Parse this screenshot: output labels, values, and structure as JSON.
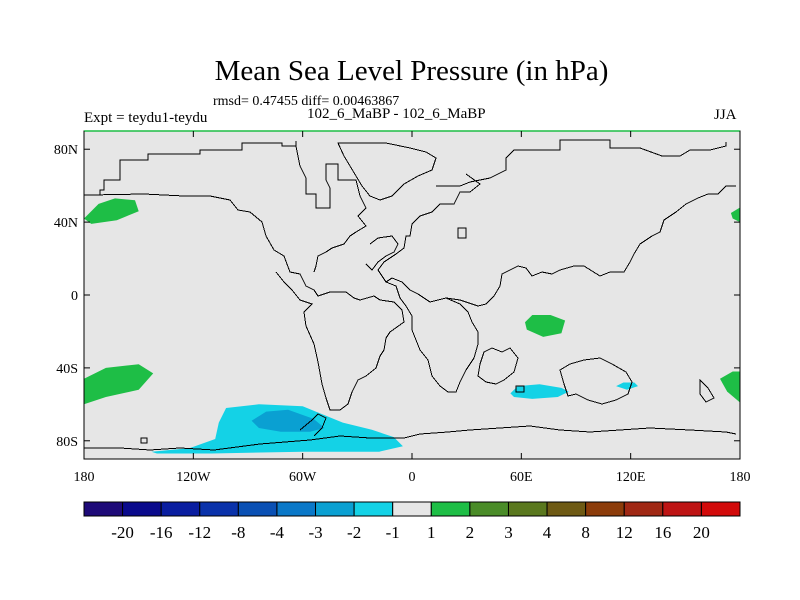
{
  "title": "Mean Sea Level Pressure (in hPa)",
  "stats": "rmsd= 0.47455 diff= 0.00463867",
  "left_label": "Expt = teydu1-teydu",
  "center_label": "102_6_MaBP - 102_6_MaBP",
  "right_label": "JJA",
  "chart_data": {
    "type": "heatmap",
    "title": "Mean Sea Level Pressure (in hPa)",
    "subtitle": "102_6_MaBP - 102_6_MaBP",
    "variable": "Mean sea level pressure difference (hPa)",
    "season": "JJA",
    "xlabel": "",
    "ylabel": "",
    "xlim": [
      -180,
      180
    ],
    "ylim": [
      -90,
      90
    ],
    "x_ticks": [
      {
        "value": -180,
        "label": "180"
      },
      {
        "value": -120,
        "label": "120W"
      },
      {
        "value": -60,
        "label": "60W"
      },
      {
        "value": 0,
        "label": "0"
      },
      {
        "value": 60,
        "label": "60E"
      },
      {
        "value": 120,
        "label": "120E"
      },
      {
        "value": 180,
        "label": "180"
      }
    ],
    "y_ticks": [
      {
        "value": 80,
        "label": "80N"
      },
      {
        "value": 40,
        "label": "40N"
      },
      {
        "value": 0,
        "label": "0"
      },
      {
        "value": -40,
        "label": "40S"
      },
      {
        "value": -80,
        "label": "80S"
      }
    ],
    "colorbar": {
      "levels": [
        "-20",
        "-16",
        "-12",
        "-8",
        "-4",
        "-3",
        "-2",
        "-1",
        "1",
        "2",
        "3",
        "4",
        "8",
        "12",
        "16",
        "20"
      ],
      "colors": [
        "#1e0a78",
        "#0a0a8c",
        "#0a1ea0",
        "#0a32aa",
        "#0a50b4",
        "#0a78c8",
        "#0aa0d2",
        "#14d2e6",
        "#e6e6e6",
        "#1ebe46",
        "#4a8c28",
        "#5a781e",
        "#6e5a14",
        "#8c3c0a",
        "#a02814",
        "#be1414",
        "#d20a0a"
      ]
    },
    "regions": [
      {
        "name": "antarctic-negative-broad",
        "level_range": "-2 to -1",
        "polygon": [
          [
            -143,
            -86
          ],
          [
            -122,
            -84
          ],
          [
            -108,
            -79
          ],
          [
            -106,
            -70
          ],
          [
            -102,
            -62
          ],
          [
            -84,
            -60
          ],
          [
            -60,
            -61
          ],
          [
            -38,
            -70
          ],
          [
            -22,
            -74
          ],
          [
            -10,
            -78
          ],
          [
            -5,
            -83
          ],
          [
            -18,
            -86
          ],
          [
            -60,
            -86
          ],
          [
            -110,
            -87
          ],
          [
            -140,
            -87
          ]
        ]
      },
      {
        "name": "antarctic-negative-core",
        "level_range": "-3 to -2",
        "polygon": [
          [
            -88,
            -69
          ],
          [
            -80,
            -64
          ],
          [
            -68,
            -63
          ],
          [
            -54,
            -68
          ],
          [
            -48,
            -73
          ],
          [
            -56,
            -75
          ],
          [
            -72,
            -75
          ],
          [
            -84,
            -73
          ]
        ]
      },
      {
        "name": "south-atlantic-negative",
        "level_range": "-2 to -1",
        "polygon": [
          [
            54,
            -54
          ],
          [
            58,
            -50
          ],
          [
            70,
            -49
          ],
          [
            82,
            -51
          ],
          [
            86,
            -53
          ],
          [
            80,
            -56
          ],
          [
            66,
            -57
          ],
          [
            56,
            -56
          ]
        ]
      },
      {
        "name": "south-indian-negative",
        "level_range": "-2 to -1",
        "polygon": [
          [
            112,
            -50
          ],
          [
            116,
            -48
          ],
          [
            122,
            -48
          ],
          [
            124,
            -50
          ],
          [
            118,
            -52
          ]
        ]
      },
      {
        "name": "north-pacific-positive",
        "level_range": "1 to 2",
        "polygon": [
          [
            -180,
            42
          ],
          [
            -172,
            50
          ],
          [
            -163,
            53
          ],
          [
            -152,
            52
          ],
          [
            -150,
            46
          ],
          [
            -162,
            41
          ],
          [
            -176,
            39
          ]
        ]
      },
      {
        "name": "east-north-atlantic-positive",
        "level_range": "1 to 2",
        "polygon": [
          [
            175,
            45
          ],
          [
            180,
            48
          ],
          [
            180,
            40
          ],
          [
            176,
            42
          ]
        ]
      },
      {
        "name": "south-pacific-positive-west",
        "level_range": "1 to 2",
        "polygon": [
          [
            -180,
            -46
          ],
          [
            -168,
            -40
          ],
          [
            -150,
            -38
          ],
          [
            -142,
            -43
          ],
          [
            -150,
            -52
          ],
          [
            -168,
            -56
          ],
          [
            -180,
            -60
          ]
        ]
      },
      {
        "name": "south-pacific-positive-east",
        "level_range": "1 to 2",
        "polygon": [
          [
            169,
            -46
          ],
          [
            176,
            -42
          ],
          [
            180,
            -42
          ],
          [
            180,
            -59
          ],
          [
            173,
            -53
          ]
        ]
      },
      {
        "name": "indian-ocean-positive",
        "level_range": "1 to 2",
        "polygon": [
          [
            62,
            -15
          ],
          [
            66,
            -11
          ],
          [
            76,
            -11
          ],
          [
            84,
            -14
          ],
          [
            82,
            -21
          ],
          [
            72,
            -23
          ],
          [
            63,
            -19
          ]
        ]
      }
    ]
  }
}
